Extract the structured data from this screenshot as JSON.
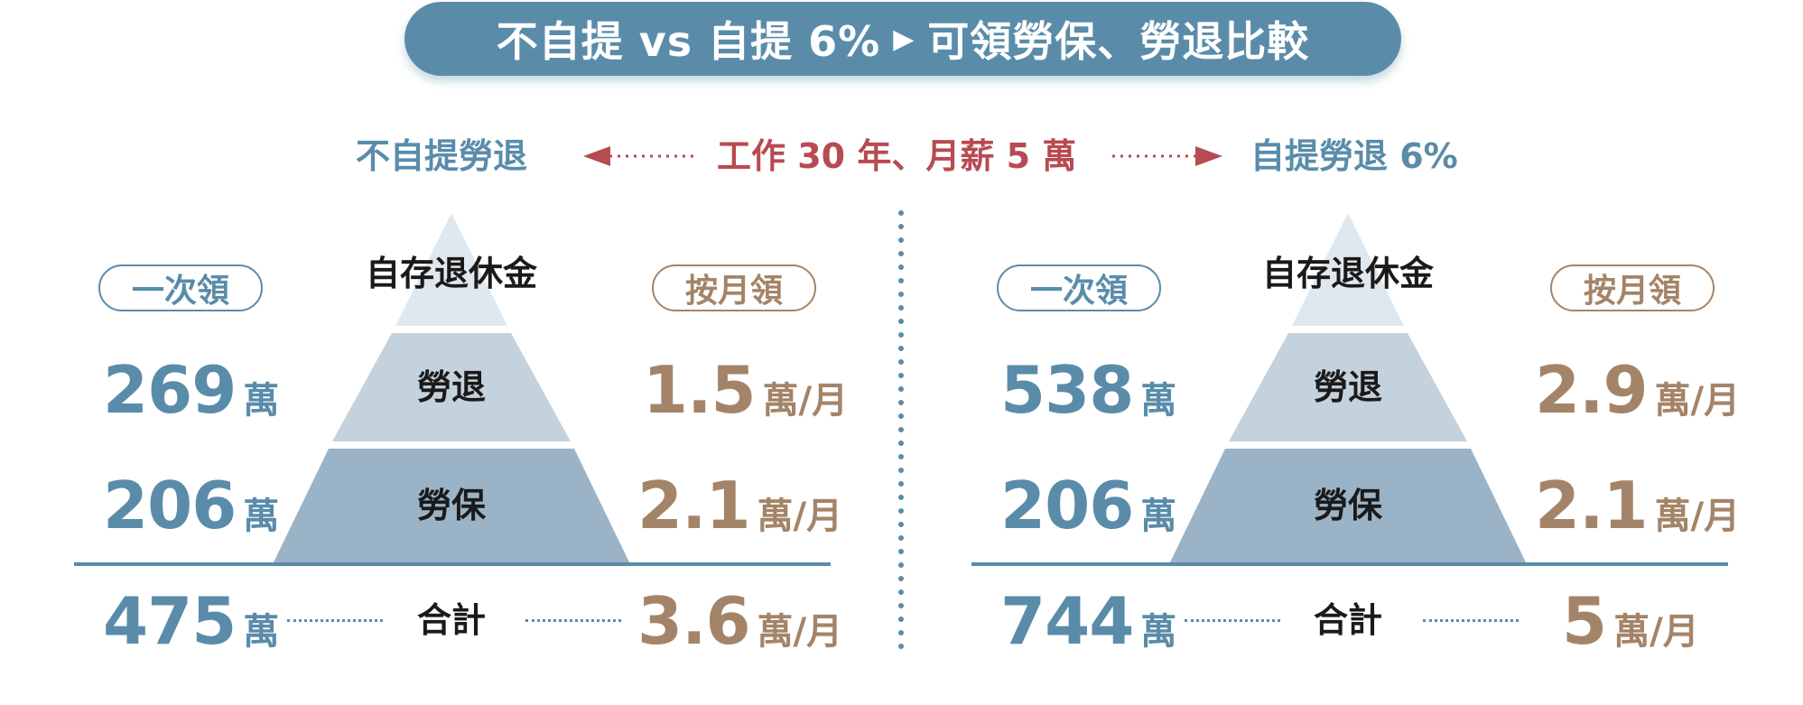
{
  "title": "不自提 vs 自提 6%",
  "title_arrow": "▶",
  "title_suffix": "可領勞保、勞退比較",
  "subheader": {
    "left": "不自提勞退",
    "middle": "工作 30 年、月薪 5 萬",
    "right": "自提勞退 6%"
  },
  "colors": {
    "blue": "#5a8caa",
    "brown": "#a48468",
    "red": "#b84a52"
  },
  "panels": [
    {
      "lump_label": "一次領",
      "monthly_label": "按月領",
      "pyramid": {
        "top": "自存退休金",
        "middle": "勞退",
        "bottom": "勞保"
      },
      "total_label": "合計",
      "rows": [
        {
          "lump": "269",
          "lump_unit": "萬",
          "monthly": "1.5",
          "monthly_unit": "萬/月"
        },
        {
          "lump": "206",
          "lump_unit": "萬",
          "monthly": "2.1",
          "monthly_unit": "萬/月"
        }
      ],
      "total": {
        "lump": "475",
        "lump_unit": "萬",
        "monthly": "3.6",
        "monthly_unit": "萬/月"
      }
    },
    {
      "lump_label": "一次領",
      "monthly_label": "按月領",
      "pyramid": {
        "top": "自存退休金",
        "middle": "勞退",
        "bottom": "勞保"
      },
      "total_label": "合計",
      "rows": [
        {
          "lump": "538",
          "lump_unit": "萬",
          "monthly": "2.9",
          "monthly_unit": "萬/月"
        },
        {
          "lump": "206",
          "lump_unit": "萬",
          "monthly": "2.1",
          "monthly_unit": "萬/月"
        }
      ],
      "total": {
        "lump": "744",
        "lump_unit": "萬",
        "monthly": "5",
        "monthly_unit": "萬/月"
      }
    }
  ]
}
